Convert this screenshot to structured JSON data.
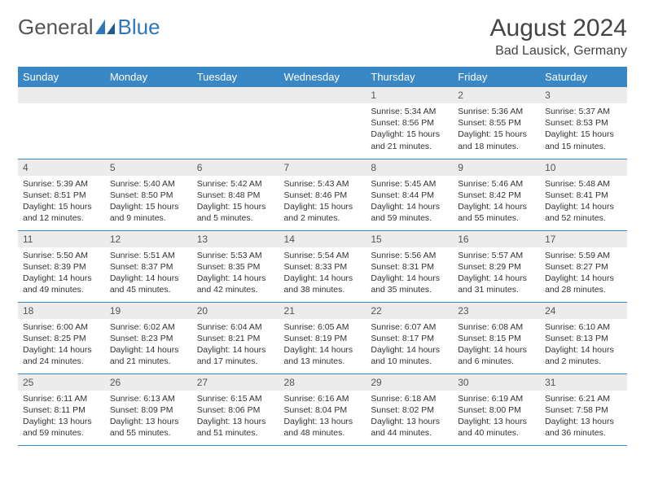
{
  "brand": {
    "part1": "General",
    "part2": "Blue"
  },
  "title": "August 2024",
  "location": "Bad Lausick, Germany",
  "colors": {
    "header_bg": "#3a87c6",
    "header_text": "#ffffff",
    "daynum_bg": "#ececec",
    "border": "#3a87c6",
    "text": "#333333",
    "brand_blue": "#2f78b7",
    "page_bg": "#ffffff"
  },
  "typography": {
    "font_family": "Arial",
    "title_size_pt": 22,
    "location_size_pt": 12,
    "header_cell_size_pt": 10,
    "body_size_pt": 8
  },
  "weekday_labels": [
    "Sunday",
    "Monday",
    "Tuesday",
    "Wednesday",
    "Thursday",
    "Friday",
    "Saturday"
  ],
  "weeks": [
    [
      null,
      null,
      null,
      null,
      {
        "n": "1",
        "sunrise": "5:34 AM",
        "sunset": "8:56 PM",
        "daylight": "15 hours and 21 minutes."
      },
      {
        "n": "2",
        "sunrise": "5:36 AM",
        "sunset": "8:55 PM",
        "daylight": "15 hours and 18 minutes."
      },
      {
        "n": "3",
        "sunrise": "5:37 AM",
        "sunset": "8:53 PM",
        "daylight": "15 hours and 15 minutes."
      }
    ],
    [
      {
        "n": "4",
        "sunrise": "5:39 AM",
        "sunset": "8:51 PM",
        "daylight": "15 hours and 12 minutes."
      },
      {
        "n": "5",
        "sunrise": "5:40 AM",
        "sunset": "8:50 PM",
        "daylight": "15 hours and 9 minutes."
      },
      {
        "n": "6",
        "sunrise": "5:42 AM",
        "sunset": "8:48 PM",
        "daylight": "15 hours and 5 minutes."
      },
      {
        "n": "7",
        "sunrise": "5:43 AM",
        "sunset": "8:46 PM",
        "daylight": "15 hours and 2 minutes."
      },
      {
        "n": "8",
        "sunrise": "5:45 AM",
        "sunset": "8:44 PM",
        "daylight": "14 hours and 59 minutes."
      },
      {
        "n": "9",
        "sunrise": "5:46 AM",
        "sunset": "8:42 PM",
        "daylight": "14 hours and 55 minutes."
      },
      {
        "n": "10",
        "sunrise": "5:48 AM",
        "sunset": "8:41 PM",
        "daylight": "14 hours and 52 minutes."
      }
    ],
    [
      {
        "n": "11",
        "sunrise": "5:50 AM",
        "sunset": "8:39 PM",
        "daylight": "14 hours and 49 minutes."
      },
      {
        "n": "12",
        "sunrise": "5:51 AM",
        "sunset": "8:37 PM",
        "daylight": "14 hours and 45 minutes."
      },
      {
        "n": "13",
        "sunrise": "5:53 AM",
        "sunset": "8:35 PM",
        "daylight": "14 hours and 42 minutes."
      },
      {
        "n": "14",
        "sunrise": "5:54 AM",
        "sunset": "8:33 PM",
        "daylight": "14 hours and 38 minutes."
      },
      {
        "n": "15",
        "sunrise": "5:56 AM",
        "sunset": "8:31 PM",
        "daylight": "14 hours and 35 minutes."
      },
      {
        "n": "16",
        "sunrise": "5:57 AM",
        "sunset": "8:29 PM",
        "daylight": "14 hours and 31 minutes."
      },
      {
        "n": "17",
        "sunrise": "5:59 AM",
        "sunset": "8:27 PM",
        "daylight": "14 hours and 28 minutes."
      }
    ],
    [
      {
        "n": "18",
        "sunrise": "6:00 AM",
        "sunset": "8:25 PM",
        "daylight": "14 hours and 24 minutes."
      },
      {
        "n": "19",
        "sunrise": "6:02 AM",
        "sunset": "8:23 PM",
        "daylight": "14 hours and 21 minutes."
      },
      {
        "n": "20",
        "sunrise": "6:04 AM",
        "sunset": "8:21 PM",
        "daylight": "14 hours and 17 minutes."
      },
      {
        "n": "21",
        "sunrise": "6:05 AM",
        "sunset": "8:19 PM",
        "daylight": "14 hours and 13 minutes."
      },
      {
        "n": "22",
        "sunrise": "6:07 AM",
        "sunset": "8:17 PM",
        "daylight": "14 hours and 10 minutes."
      },
      {
        "n": "23",
        "sunrise": "6:08 AM",
        "sunset": "8:15 PM",
        "daylight": "14 hours and 6 minutes."
      },
      {
        "n": "24",
        "sunrise": "6:10 AM",
        "sunset": "8:13 PM",
        "daylight": "14 hours and 2 minutes."
      }
    ],
    [
      {
        "n": "25",
        "sunrise": "6:11 AM",
        "sunset": "8:11 PM",
        "daylight": "13 hours and 59 minutes."
      },
      {
        "n": "26",
        "sunrise": "6:13 AM",
        "sunset": "8:09 PM",
        "daylight": "13 hours and 55 minutes."
      },
      {
        "n": "27",
        "sunrise": "6:15 AM",
        "sunset": "8:06 PM",
        "daylight": "13 hours and 51 minutes."
      },
      {
        "n": "28",
        "sunrise": "6:16 AM",
        "sunset": "8:04 PM",
        "daylight": "13 hours and 48 minutes."
      },
      {
        "n": "29",
        "sunrise": "6:18 AM",
        "sunset": "8:02 PM",
        "daylight": "13 hours and 44 minutes."
      },
      {
        "n": "30",
        "sunrise": "6:19 AM",
        "sunset": "8:00 PM",
        "daylight": "13 hours and 40 minutes."
      },
      {
        "n": "31",
        "sunrise": "6:21 AM",
        "sunset": "7:58 PM",
        "daylight": "13 hours and 36 minutes."
      }
    ]
  ],
  "labels": {
    "sunrise": "Sunrise:",
    "sunset": "Sunset:",
    "daylight": "Daylight:"
  }
}
